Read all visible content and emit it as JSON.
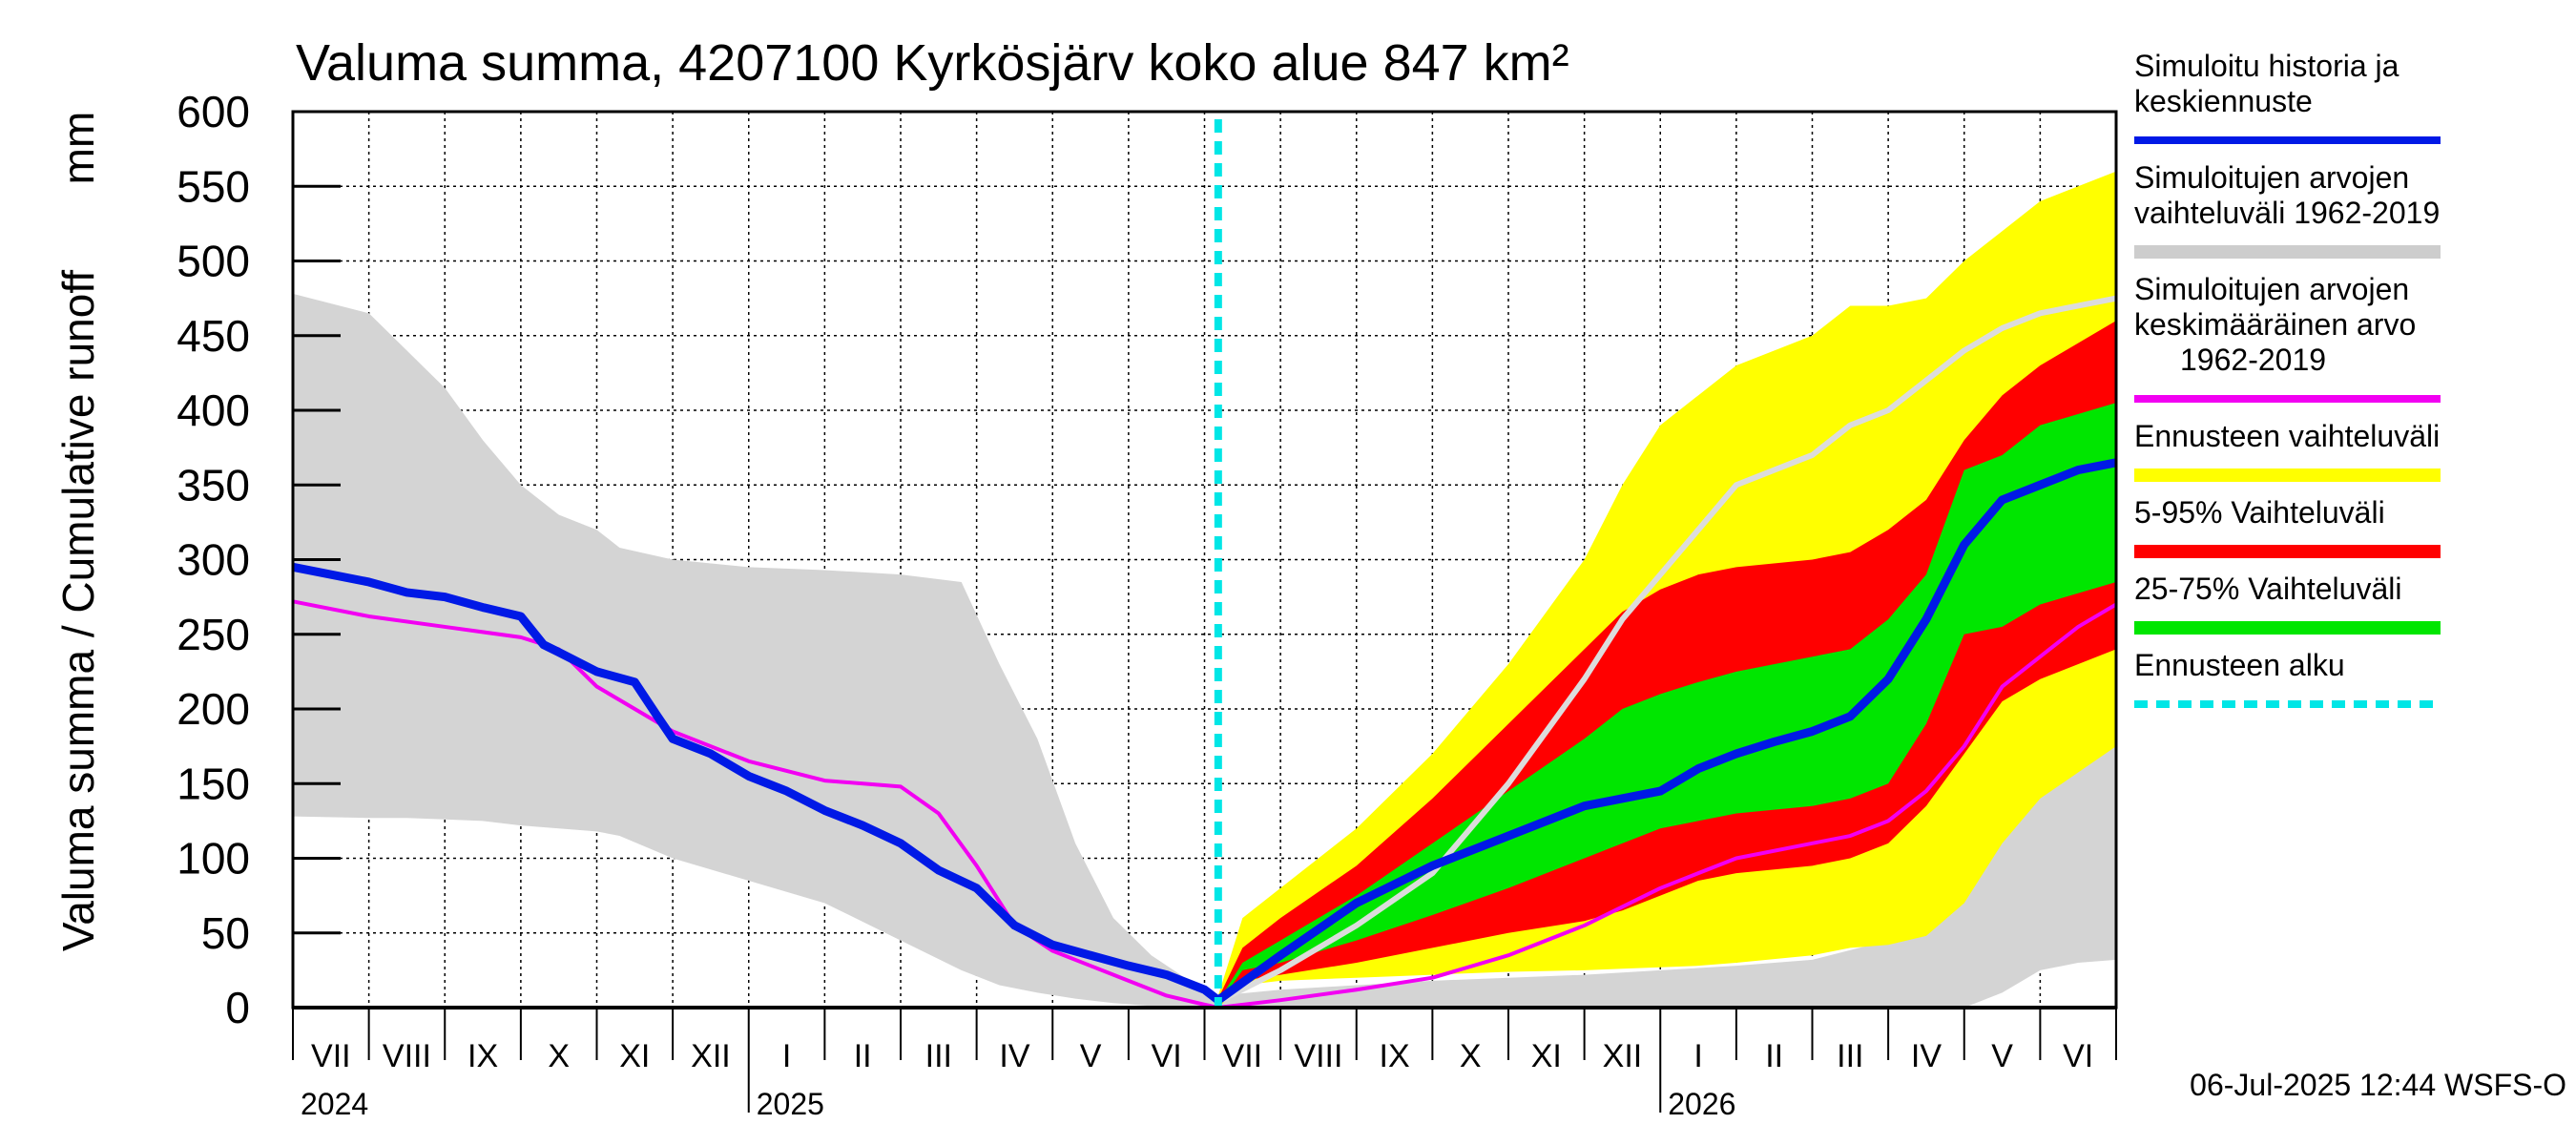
{
  "chart_data": {
    "type": "area",
    "title": "Valuma summa, 4207100 Kyrkösjärv koko alue 847 km²",
    "ylabel": "Valuma summa / Cumulative runoff",
    "yunit": "mm",
    "ylim": [
      0,
      600
    ],
    "yticks": [
      0,
      50,
      100,
      150,
      200,
      250,
      300,
      350,
      400,
      450,
      500,
      550,
      600
    ],
    "x_unit": "months since 1 Jul 2024",
    "xlim": [
      0,
      24
    ],
    "forecast_start": 12.18,
    "month_labels": [
      "VII",
      "VIII",
      "IX",
      "X",
      "XI",
      "XII",
      "I",
      "II",
      "III",
      "IV",
      "V",
      "VI",
      "VII",
      "VIII",
      "IX",
      "X",
      "XI",
      "XII",
      "I",
      "II",
      "III",
      "IV",
      "V",
      "VI"
    ],
    "year_labels": [
      {
        "label": "2024",
        "x": 0
      },
      {
        "label": "2025",
        "x": 6
      },
      {
        "label": "2026",
        "x": 18
      }
    ],
    "footer": "06-Jul-2025 12:44 WSFS-O",
    "legend": [
      {
        "label": "Simuloitu historia ja keskiennuste",
        "lines": [
          "Simuloitu historia ja",
          "keskiennuste"
        ],
        "color": "#0019e6",
        "kind": "line"
      },
      {
        "label": "Simuloitujen arvojen vaihteluväli 1962-2019",
        "lines": [
          "Simuloitujen arvojen",
          "vaihteluväli 1962-2019"
        ],
        "color": "#cdcdcd",
        "kind": "band"
      },
      {
        "label": "Simuloitujen arvojen keskimääräinen arvo 1962-2019",
        "lines": [
          "Simuloitujen arvojen",
          "keskimääräinen arvo",
          "1962-2019"
        ],
        "color": "#f200f2",
        "kind": "line"
      },
      {
        "label": "Ennusteen vaihteluväli",
        "lines": [
          "Ennusteen vaihteluväli"
        ],
        "color": "#ffff00",
        "kind": "band"
      },
      {
        "label": "5-95% Vaihteluväli",
        "lines": [
          "5-95% Vaihteluväli"
        ],
        "color": "#ff0000",
        "kind": "band"
      },
      {
        "label": "25-75% Vaihteluväli",
        "lines": [
          "25-75% Vaihteluväli"
        ],
        "color": "#00e600",
        "kind": "band"
      },
      {
        "label": "Ennusteen alku",
        "lines": [
          "Ennusteen alku"
        ],
        "color": "#00e6e6",
        "kind": "dashed"
      }
    ],
    "series": [
      {
        "name": "Simuloitujen arvojen vaihteluväli 1962-2019 (grey band)",
        "color": "#d4d4d4",
        "x": [
          0,
          1,
          1.5,
          2,
          2.5,
          3,
          3.5,
          4,
          4.3,
          5,
          6,
          7,
          8,
          8.8,
          9.3,
          9.8,
          10.3,
          10.8,
          11.3,
          11.8,
          12.18,
          13,
          14,
          15,
          16,
          17,
          18,
          19,
          20,
          21,
          22,
          22.5,
          23,
          23.5,
          24
        ],
        "upper": [
          478,
          465,
          440,
          415,
          380,
          350,
          330,
          320,
          308,
          300,
          295,
          293,
          290,
          285,
          230,
          180,
          110,
          60,
          35,
          18,
          8,
          12,
          15,
          18,
          20,
          22,
          25,
          28,
          32,
          45,
          120,
          150,
          165,
          172,
          175
        ],
        "lower": [
          128,
          127,
          127,
          126,
          125,
          122,
          120,
          118,
          115,
          100,
          85,
          70,
          45,
          25,
          15,
          10,
          6,
          3,
          1,
          0,
          0,
          0,
          0,
          0,
          0,
          0,
          0,
          0,
          0,
          0,
          0,
          10,
          25,
          30,
          32
        ]
      },
      {
        "name": "Ennusteen vaihteluväli (yellow band)",
        "color": "#ffff00",
        "x": [
          12.18,
          12.5,
          13,
          14,
          15,
          16,
          17,
          17.5,
          18,
          18.5,
          19,
          20,
          20.5,
          21,
          21.5,
          22,
          22.5,
          23,
          24
        ],
        "upper": [
          8,
          60,
          80,
          120,
          170,
          230,
          300,
          350,
          390,
          410,
          430,
          450,
          470,
          470,
          475,
          500,
          520,
          540,
          560
        ],
        "lower": [
          0,
          15,
          18,
          20,
          22,
          24,
          25,
          26,
          27,
          28,
          30,
          35,
          40,
          42,
          48,
          70,
          110,
          140,
          175
        ]
      },
      {
        "name": "5-95% Vaihteluväli (red band)",
        "color": "#ff0000",
        "x": [
          12.18,
          12.5,
          13,
          14,
          15,
          16,
          17,
          17.5,
          18,
          18.5,
          19,
          20,
          20.5,
          21,
          21.5,
          22,
          22.5,
          23,
          24
        ],
        "upper": [
          6,
          40,
          60,
          95,
          140,
          190,
          240,
          265,
          280,
          290,
          295,
          300,
          305,
          320,
          340,
          380,
          410,
          430,
          460
        ],
        "lower": [
          0,
          18,
          22,
          30,
          40,
          50,
          58,
          65,
          75,
          85,
          90,
          95,
          100,
          110,
          135,
          170,
          205,
          220,
          240
        ]
      },
      {
        "name": "25-75% Vaihteluväli (green band)",
        "color": "#00e600",
        "x": [
          12.18,
          12.5,
          13,
          14,
          15,
          16,
          17,
          17.5,
          18,
          18.5,
          19,
          20,
          20.5,
          21,
          21.5,
          22,
          22.5,
          23,
          24
        ],
        "upper": [
          4,
          30,
          45,
          75,
          110,
          145,
          180,
          200,
          210,
          218,
          225,
          235,
          240,
          260,
          290,
          360,
          370,
          390,
          405
        ],
        "lower": [
          2,
          25,
          30,
          45,
          62,
          80,
          100,
          110,
          120,
          125,
          130,
          135,
          140,
          150,
          190,
          250,
          255,
          270,
          285
        ]
      },
      {
        "name": "Simuloitujen arvojen keskimääräinen arvo (grey light line)",
        "color": "#dcdcdc",
        "x": [
          12.18,
          13,
          14,
          15,
          16,
          17,
          17.5,
          18,
          18.5,
          19,
          19.5,
          20,
          20.5,
          21,
          21.5,
          22,
          22.5,
          23,
          23.5,
          24
        ],
        "values": [
          4,
          25,
          55,
          90,
          150,
          220,
          260,
          290,
          320,
          350,
          360,
          370,
          390,
          400,
          420,
          440,
          455,
          465,
          470,
          475
        ]
      },
      {
        "name": "Simuloitujen arvojen keskimääräinen arvo 1962-2019",
        "color": "#f200f2",
        "x": [
          0,
          1,
          2,
          3,
          3.5,
          4,
          4.5,
          5,
          6,
          7,
          8,
          8.5,
          9,
          9.5,
          10,
          10.5,
          11,
          11.5,
          12,
          12.18,
          13,
          14,
          15,
          16,
          17,
          18,
          19,
          20,
          20.5,
          21,
          21.5,
          22,
          22.5,
          23,
          23.5,
          24
        ],
        "values": [
          272,
          262,
          255,
          248,
          240,
          215,
          200,
          185,
          165,
          152,
          148,
          130,
          95,
          55,
          38,
          28,
          18,
          8,
          2,
          0,
          5,
          12,
          20,
          35,
          55,
          80,
          100,
          110,
          115,
          125,
          145,
          175,
          215,
          235,
          255,
          270
        ]
      },
      {
        "name": "Simuloitu historia ja keskiennuste",
        "color": "#0019e6",
        "x": [
          0,
          1,
          1.5,
          2,
          2.5,
          3,
          3.3,
          3.5,
          4,
          4.5,
          4.8,
          5,
          5.5,
          6,
          6.5,
          7,
          7.5,
          8,
          8.5,
          9,
          9.5,
          10,
          10.5,
          11,
          11.5,
          12,
          12.18,
          13,
          14,
          15,
          16,
          17,
          18,
          18.5,
          19,
          19.5,
          20,
          20.5,
          21,
          21.5,
          22,
          22.5,
          23,
          23.5,
          24
        ],
        "values": [
          295,
          285,
          278,
          275,
          268,
          262,
          243,
          238,
          225,
          218,
          195,
          180,
          170,
          155,
          145,
          132,
          122,
          110,
          92,
          80,
          55,
          42,
          35,
          28,
          22,
          12,
          5,
          35,
          70,
          95,
          115,
          135,
          145,
          160,
          170,
          178,
          185,
          195,
          220,
          260,
          310,
          340,
          350,
          360,
          365
        ]
      }
    ]
  }
}
